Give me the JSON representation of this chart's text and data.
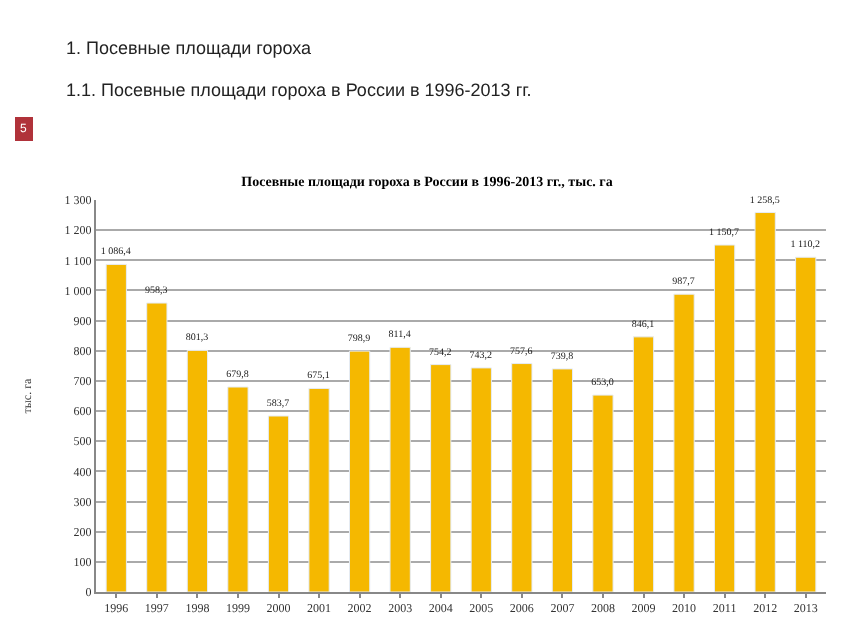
{
  "chart_data": {
    "type": "bar",
    "title": "Посевные площади гороха в России в 1996-2013 гг., тыс. га",
    "ylabel": "тыс. га",
    "annotations": [
      "1. Посевные площади гороха",
      "1.1. Посевные площади гороха в России в 1996-2013 гг.",
      "5"
    ],
    "categories": [
      "1996",
      "1997",
      "1998",
      "1999",
      "2000",
      "2001",
      "2002",
      "2003",
      "2004",
      "2005",
      "2006",
      "2007",
      "2008",
      "2009",
      "2010",
      "2011",
      "2012",
      "2013"
    ],
    "values": [
      1086.4,
      958.3,
      801.3,
      679.8,
      583.7,
      675.1,
      798.9,
      811.4,
      754.2,
      743.2,
      757.6,
      739.8,
      653.0,
      846.1,
      987.7,
      1150.7,
      1258.5,
      1110.2
    ],
    "value_labels": [
      "1 086,4",
      "958,3",
      "801,3",
      "679,8",
      "583,7",
      "675,1",
      "798,9",
      "811,4",
      "754,2",
      "743,2",
      "757,6",
      "739,8",
      "653,0",
      "846,1",
      "987,7",
      "1 150,7",
      "1 258,5",
      "1 110,2"
    ],
    "color": "#f5b800",
    "ylim": [
      0,
      1300
    ],
    "yticks": [
      0,
      100,
      200,
      300,
      400,
      500,
      600,
      700,
      800,
      900,
      {
        "value": 1000,
        "label": "1 000"
      },
      {
        "value": 1100,
        "label": "1 100"
      },
      {
        "value": 1200,
        "label": "1 200"
      },
      {
        "value": 1300,
        "label": "1 300"
      }
    ],
    "grid": "y",
    "legend": false
  }
}
